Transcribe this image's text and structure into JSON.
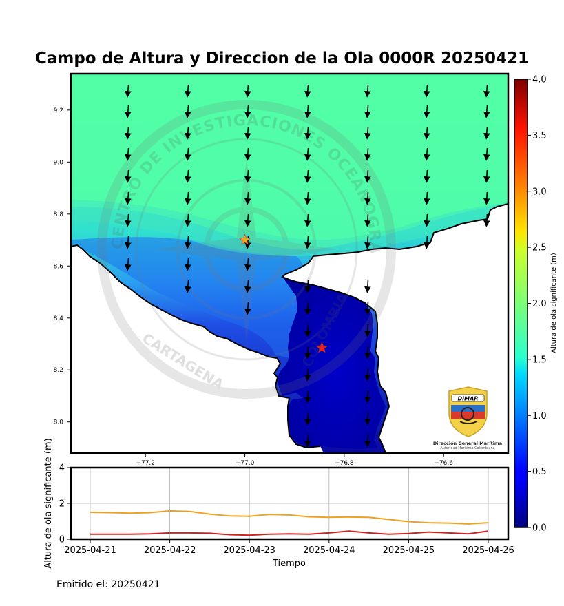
{
  "title": "Campo de Altura y Direccion de la Ola 0000R 20250421",
  "map": {
    "xticks": [
      "−77.2",
      "−77.0",
      "−76.8",
      "−76.6"
    ],
    "yticks": [
      "9.2",
      "9.0",
      "8.8",
      "8.6",
      "8.4",
      "8.2",
      "8.0"
    ],
    "xlim": [
      -77.35,
      -76.47
    ],
    "ylim": [
      7.88,
      9.34
    ],
    "points": [
      {
        "name": "orange-star",
        "lon": -77.0,
        "lat": 8.7,
        "color": "#f5a623"
      },
      {
        "name": "red-star",
        "lon": -76.845,
        "lat": 8.285,
        "color": "#e8221c"
      }
    ],
    "watermark": {
      "ring_text": "CENTRO DE INVESTIGACIONES OCEANOGRÁFICAS E HIDROGRÁFICAS",
      "bottom_text": "CARTAGENA",
      "side_text": "COLOMBIA"
    },
    "logo": {
      "brand": "DIMAR",
      "line1": "Dirección General Marítima",
      "line2": "Autoridad Marítima Colombiana"
    }
  },
  "colorbar": {
    "label": "Altura de ola significante (m)",
    "ticks": [
      "0.0",
      "0.5",
      "1.0",
      "1.5",
      "2.0",
      "2.5",
      "3.0",
      "3.5",
      "4.0"
    ],
    "range": [
      0,
      4
    ]
  },
  "chart_data": {
    "type": "line",
    "xlabel": "Tiempo",
    "ylabel": "Altura de ola significante (m)",
    "ylim": [
      0,
      4
    ],
    "yticks": [
      "0",
      "2",
      "4"
    ],
    "xtick_labels": [
      "2025-04-21",
      "2025-04-22",
      "2025-04-23",
      "2025-04-24",
      "2025-04-25",
      "2025-04-26"
    ],
    "xlim": [
      0,
      5
    ],
    "grid": true,
    "series": [
      {
        "color": "#f0a020",
        "x": [
          0,
          0.25,
          0.5,
          0.75,
          1.0,
          1.25,
          1.5,
          1.75,
          2.0,
          2.25,
          2.5,
          2.75,
          3.0,
          3.25,
          3.5,
          3.75,
          4.0,
          4.25,
          4.5,
          4.75,
          5.0
        ],
        "values": [
          1.5,
          1.48,
          1.45,
          1.48,
          1.58,
          1.55,
          1.4,
          1.3,
          1.28,
          1.38,
          1.35,
          1.25,
          1.22,
          1.24,
          1.22,
          1.1,
          0.98,
          0.92,
          0.9,
          0.85,
          0.92
        ]
      },
      {
        "color": "#cc2222",
        "x": [
          0,
          0.25,
          0.5,
          0.75,
          1.0,
          1.25,
          1.5,
          1.75,
          2.0,
          2.25,
          2.5,
          2.75,
          3.0,
          3.25,
          3.5,
          3.75,
          4.0,
          4.25,
          4.5,
          4.75,
          5.0
        ],
        "values": [
          0.28,
          0.28,
          0.28,
          0.3,
          0.35,
          0.35,
          0.33,
          0.25,
          0.22,
          0.28,
          0.3,
          0.28,
          0.35,
          0.45,
          0.35,
          0.28,
          0.32,
          0.4,
          0.35,
          0.3,
          0.45
        ]
      }
    ]
  },
  "footer": {
    "emitido": "Emitido el: 20250421"
  }
}
